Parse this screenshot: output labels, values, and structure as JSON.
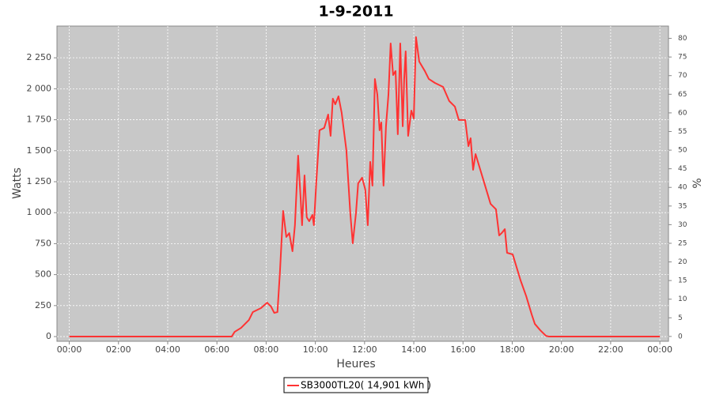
{
  "chart_data": {
    "type": "line",
    "title": "1-9-2011",
    "x_label": "Heures",
    "y_label": "Watts",
    "y2_label": "%",
    "xlim": [
      -0.5,
      24.35
    ],
    "xticks": [
      {
        "value": 0,
        "label": "00:00"
      },
      {
        "value": 2,
        "label": "02:00"
      },
      {
        "value": 4,
        "label": "04:00"
      },
      {
        "value": 6,
        "label": "06:00"
      },
      {
        "value": 8,
        "label": "08:00"
      },
      {
        "value": 10,
        "label": "10:00"
      },
      {
        "value": 12,
        "label": "12:00"
      },
      {
        "value": 14,
        "label": "14:00"
      },
      {
        "value": 16,
        "label": "16:00"
      },
      {
        "value": 18,
        "label": "18:00"
      },
      {
        "value": 20,
        "label": "20:00"
      },
      {
        "value": 22,
        "label": "22:00"
      },
      {
        "value": 24,
        "label": "00:00"
      }
    ],
    "ylim": [
      -38,
      2506
    ],
    "yticks": [
      0,
      250,
      500,
      750,
      {
        "value": 1000,
        "label": "1 000"
      },
      {
        "value": 1250,
        "label": "1 250"
      },
      {
        "value": 1500,
        "label": "1 500"
      },
      {
        "value": 1750,
        "label": "1 750"
      },
      {
        "value": 2000,
        "label": "2 000"
      },
      {
        "value": 2250,
        "label": "2 250"
      }
    ],
    "y2lim": [
      -1.3,
      83.3
    ],
    "y2ticks": [
      0,
      5,
      10,
      15,
      20,
      25,
      30,
      35,
      40,
      45,
      50,
      55,
      60,
      65,
      70,
      75,
      80
    ],
    "grid": true,
    "legend": "bottom",
    "x": [
      0,
      6.6,
      6.72,
      6.98,
      7.3,
      7.46,
      7.79,
      8.04,
      8.2,
      8.33,
      8.46,
      8.56,
      8.69,
      8.82,
      8.94,
      9.07,
      9.17,
      9.3,
      9.4,
      9.46,
      9.56,
      9.65,
      9.75,
      9.88,
      9.94,
      10.04,
      10.17,
      10.36,
      10.52,
      10.62,
      10.71,
      10.81,
      10.94,
      11.07,
      11.26,
      11.42,
      11.52,
      11.65,
      11.74,
      11.9,
      12.03,
      12.13,
      12.23,
      12.32,
      12.42,
      12.52,
      12.61,
      12.68,
      12.77,
      12.87,
      12.97,
      13.06,
      13.16,
      13.26,
      13.35,
      13.45,
      13.55,
      13.61,
      13.67,
      13.77,
      13.9,
      14.0,
      14.09,
      14.22,
      14.45,
      14.61,
      14.86,
      15.19,
      15.44,
      15.67,
      15.83,
      16.09,
      16.22,
      16.31,
      16.41,
      16.51,
      16.8,
      17.12,
      17.34,
      17.47,
      17.57,
      17.7,
      17.79,
      18.02,
      18.34,
      18.57,
      18.79,
      18.92,
      19.14,
      19.37,
      19.5,
      24
    ],
    "series": [
      {
        "name": "SB3000TL20( 14,901 kWh )",
        "color": "#ff3333",
        "values": [
          0,
          0,
          38,
          70,
          134,
          198,
          230,
          274,
          242,
          191,
          198,
          517,
          1014,
          804,
          835,
          689,
          899,
          1460,
          1122,
          899,
          1301,
          963,
          931,
          982,
          899,
          1250,
          1665,
          1684,
          1792,
          1620,
          1920,
          1875,
          1939,
          1805,
          1505,
          995,
          753,
          995,
          1237,
          1282,
          1186,
          899,
          1410,
          1218,
          2079,
          1952,
          1665,
          1728,
          1218,
          1697,
          1952,
          2366,
          2111,
          2143,
          1633,
          2366,
          1697,
          2079,
          2302,
          1620,
          1824,
          1760,
          2417,
          2220,
          2143,
          2079,
          2047,
          2015,
          1901,
          1856,
          1748,
          1748,
          1537,
          1601,
          1346,
          1473,
          1282,
          1071,
          1027,
          816,
          835,
          867,
          676,
          663,
          453,
          325,
          179,
          102,
          51,
          6,
          0,
          0
        ]
      }
    ]
  }
}
